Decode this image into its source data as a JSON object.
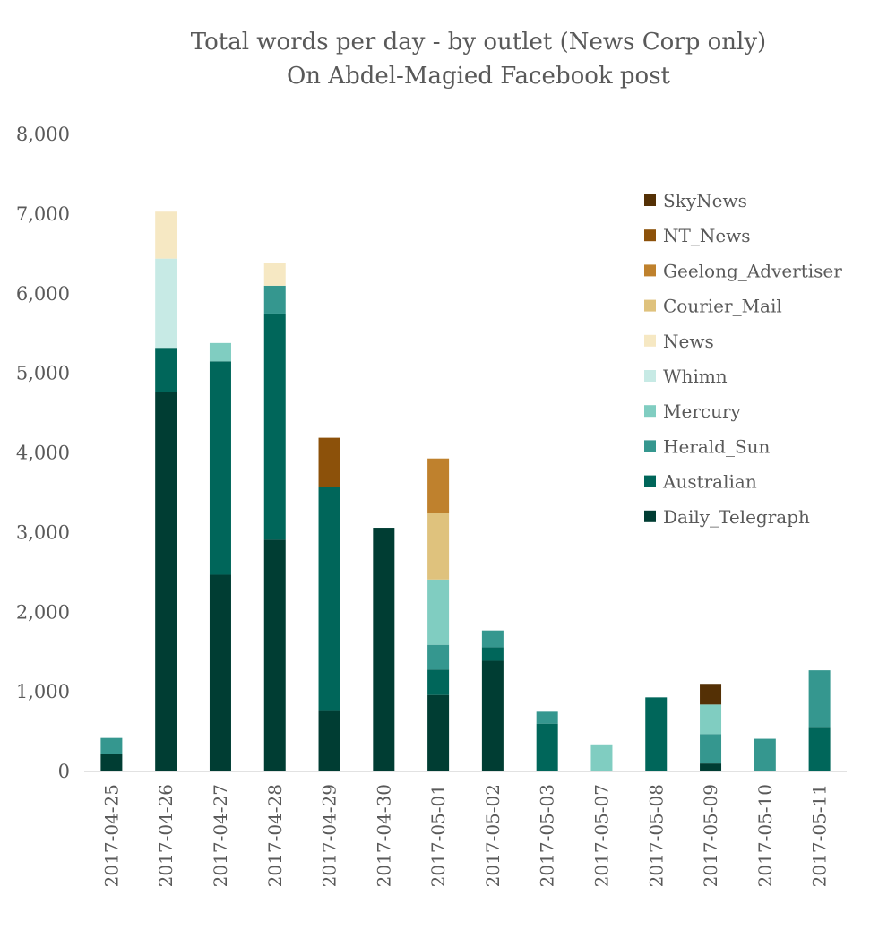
{
  "chart_data": {
    "type": "bar",
    "stacked": true,
    "title": "Total words per day - by outlet (News Corp only)",
    "subtitle": "On Abdel-Magied Facebook post",
    "xlabel": "",
    "ylabel": "",
    "ylim": [
      0,
      8000
    ],
    "yticks": [
      0,
      1000,
      2000,
      3000,
      4000,
      5000,
      6000,
      7000,
      8000
    ],
    "ytick_labels": [
      "0",
      "1,000",
      "2,000",
      "3,000",
      "4,000",
      "5,000",
      "6,000",
      "7,000",
      "8,000"
    ],
    "grid": false,
    "legend_position": "right",
    "categories": [
      "2017-04-25",
      "2017-04-26",
      "2017-04-27",
      "2017-04-28",
      "2017-04-29",
      "2017-04-30",
      "2017-05-01",
      "2017-05-02",
      "2017-05-03",
      "2017-05-07",
      "2017-05-08",
      "2017-05-09",
      "2017-05-10",
      "2017-05-11"
    ],
    "series": [
      {
        "name": "Daily_Telegraph",
        "color": "#003d33",
        "values": [
          220,
          4770,
          2470,
          2910,
          770,
          3060,
          960,
          1390,
          0,
          0,
          0,
          100,
          0,
          0
        ]
      },
      {
        "name": "Australian",
        "color": "#00665a",
        "values": [
          0,
          550,
          2680,
          2840,
          2800,
          0,
          320,
          170,
          600,
          0,
          930,
          0,
          0,
          560
        ]
      },
      {
        "name": "Herald_Sun",
        "color": "#35978f",
        "values": [
          200,
          0,
          0,
          350,
          0,
          0,
          310,
          210,
          150,
          0,
          0,
          370,
          410,
          710
        ]
      },
      {
        "name": "Mercury",
        "color": "#80cdc1",
        "values": [
          0,
          0,
          230,
          0,
          0,
          0,
          820,
          0,
          0,
          340,
          0,
          370,
          0,
          0
        ]
      },
      {
        "name": "Whimn",
        "color": "#c7eae5",
        "values": [
          0,
          1120,
          0,
          0,
          0,
          0,
          0,
          0,
          0,
          0,
          0,
          0,
          0,
          0
        ]
      },
      {
        "name": "News",
        "color": "#f6e8c3",
        "values": [
          0,
          590,
          0,
          280,
          0,
          0,
          0,
          0,
          0,
          0,
          0,
          0,
          0,
          0
        ]
      },
      {
        "name": "Courier_Mail",
        "color": "#dfc27d",
        "values": [
          0,
          0,
          0,
          0,
          0,
          0,
          830,
          0,
          0,
          0,
          0,
          0,
          0,
          0
        ]
      },
      {
        "name": "Geelong_Advertiser",
        "color": "#bf812d",
        "values": [
          0,
          0,
          0,
          0,
          0,
          0,
          690,
          0,
          0,
          0,
          0,
          0,
          0,
          0
        ]
      },
      {
        "name": "NT_News",
        "color": "#8c510a",
        "values": [
          0,
          0,
          0,
          0,
          620,
          0,
          0,
          0,
          0,
          0,
          0,
          0,
          0,
          0
        ]
      },
      {
        "name": "SkyNews",
        "color": "#543005",
        "values": [
          0,
          0,
          0,
          0,
          0,
          0,
          0,
          0,
          0,
          0,
          0,
          260,
          0,
          0
        ]
      }
    ]
  }
}
